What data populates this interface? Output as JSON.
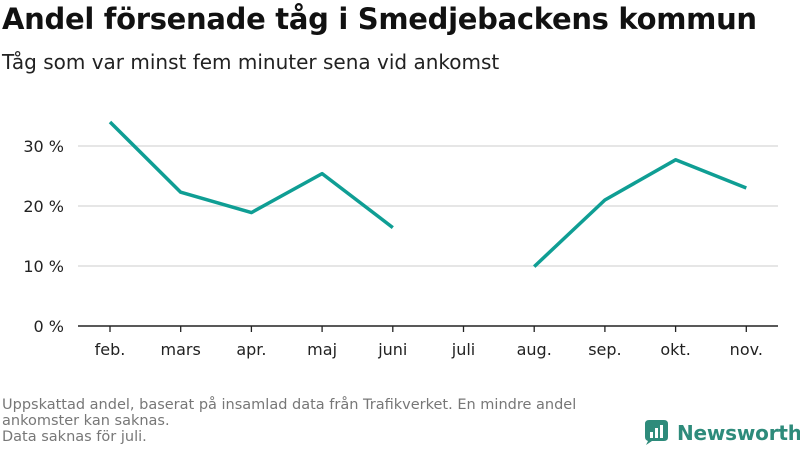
{
  "title": "Andel försenade tåg i Smedjebackens kommun",
  "subtitle": "Tåg som var minst fem minuter sena vid ankomst",
  "footnote": {
    "line1": "Uppskattad andel, baserat på insamlad data från Trafikverket. En mindre andel ankomster kan saknas.",
    "line2": "Data saknas för juli."
  },
  "brand": {
    "label": "Newsworthy",
    "color": "#2e8b7b",
    "icon": "newsworthy-logo-icon"
  },
  "chart_data": {
    "type": "line",
    "title": "Andel försenade tåg i Smedjebackens kommun",
    "subtitle": "Tåg som var minst fem minuter sena vid ankomst",
    "categories": [
      "feb.",
      "mars",
      "apr.",
      "maj",
      "juni",
      "juli",
      "aug.",
      "sep.",
      "okt.",
      "nov."
    ],
    "series": [
      {
        "values": [
          34,
          22.3,
          18.9,
          25.4,
          16.4,
          null,
          9.9,
          21.0,
          27.7,
          23.0
        ],
        "color": "#0f9e94"
      }
    ],
    "yticks": [
      0,
      10,
      20,
      30
    ],
    "ytick_labels": [
      "0 %",
      "10 %",
      "20 %",
      "30 %"
    ],
    "ylim": [
      0,
      35
    ],
    "grid": true,
    "colors": {
      "line": "#0f9e94",
      "grid": "#dddddd",
      "axis": "#222222",
      "tick_text": "#222222"
    }
  }
}
